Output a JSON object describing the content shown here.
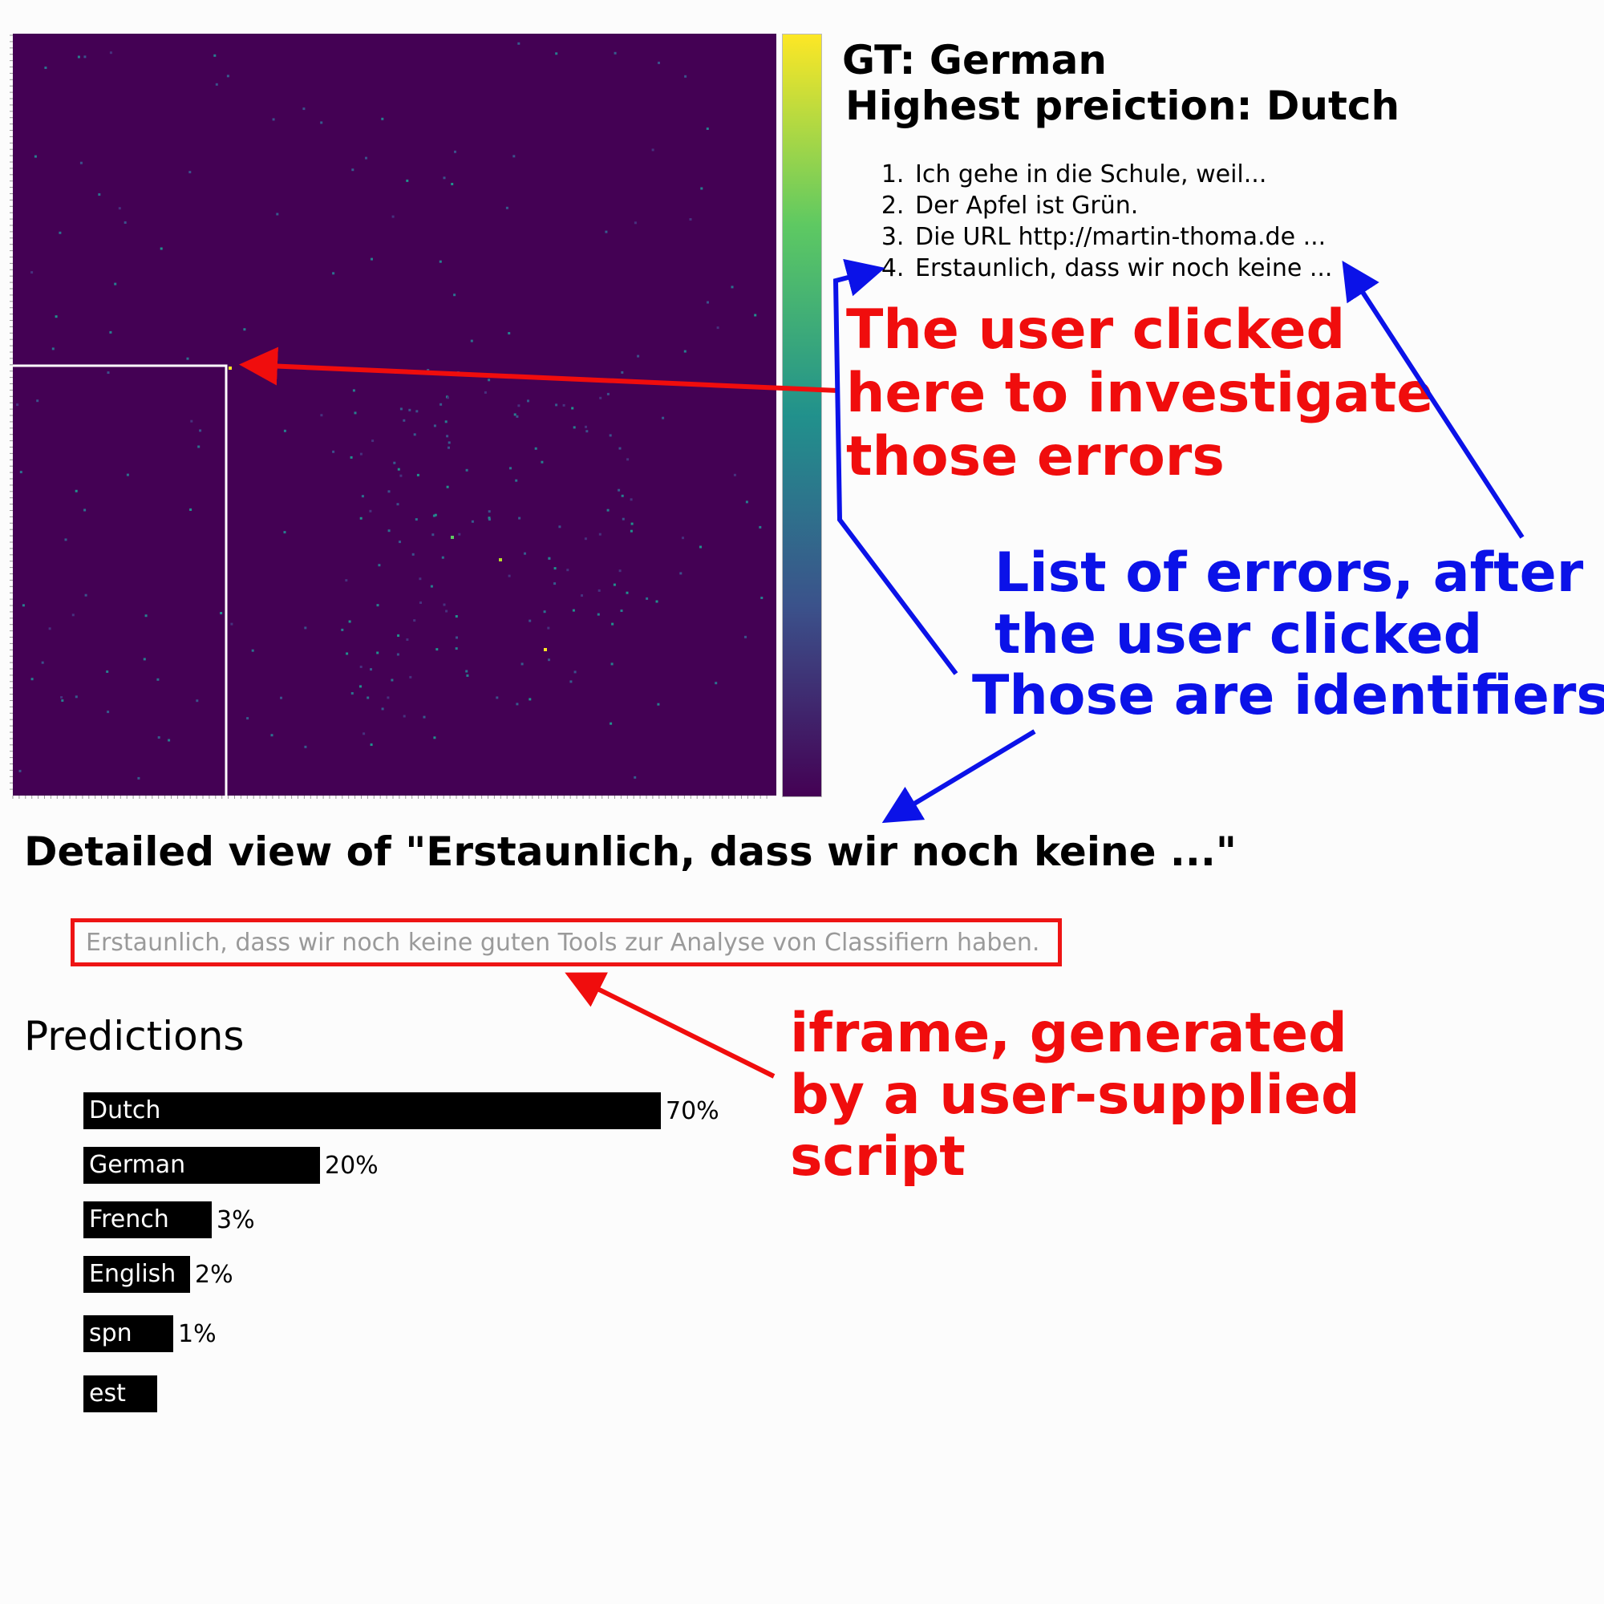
{
  "colors": {
    "matrix_background": "#440154",
    "selection_box": "#ffffff",
    "annotation_red": "#f00d0d",
    "annotation_blue": "#0b12e8",
    "iframe_border": "#ee1414",
    "colorbar_stops": [
      "#440154",
      "#3b528b",
      "#21918c",
      "#5ec962",
      "#fde725"
    ]
  },
  "sidebar": {
    "gt_title": "GT: German",
    "highest_prediction_title": "Highest preiction: Dutch",
    "errors": [
      {
        "label": "Ich gehe in die Schule, weil..."
      },
      {
        "label": "Der Apfel ist Grün."
      },
      {
        "label": "Die URL http://martin-thoma.de ..."
      },
      {
        "label": "Erstaunlich, dass wir noch keine ..."
      }
    ]
  },
  "annotations": {
    "clicked_here": [
      "The user clicked",
      "here to investigate",
      "those errors"
    ],
    "list_of_errors": [
      "List of errors, after",
      "the user clicked"
    ],
    "identifiers": "Those are identifiers",
    "iframe_note": [
      "iframe, generated",
      "by a user-supplied",
      "script"
    ]
  },
  "detail": {
    "heading": "Detailed view of \"Erstaunlich, dass wir noch keine ...\"",
    "iframe_text": "Erstaunlich, dass wir noch keine guten Tools zur Analyse von Classifiern haben.",
    "predictions_title": "Predictions"
  },
  "chart_data": {
    "type": "bar",
    "orientation": "horizontal",
    "title": "Predictions",
    "categories": [
      "Dutch",
      "German",
      "French",
      "English",
      "spn",
      "est"
    ],
    "values": [
      70,
      20,
      3,
      2,
      1,
      null
    ],
    "value_labels": [
      "70%",
      "20%",
      "3%",
      "2%",
      "1%",
      ""
    ]
  }
}
